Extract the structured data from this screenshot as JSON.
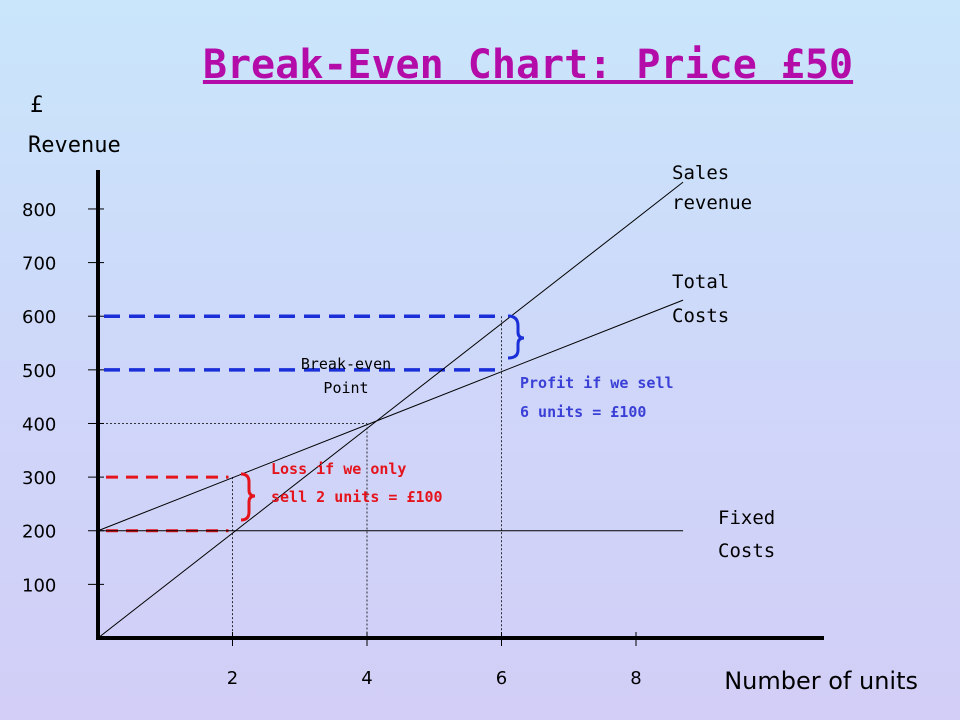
{
  "title": "Break-Even Chart: Price £50",
  "y_axis_label": [
    "£",
    "Revenue"
  ],
  "x_axis_label": "Number of units",
  "series_labels": {
    "sales_revenue": [
      "Sales",
      "revenue"
    ],
    "total_costs": [
      "Total",
      "Costs"
    ],
    "fixed_costs": [
      "Fixed",
      "Costs"
    ]
  },
  "annotations": {
    "break_even": [
      "Break-even",
      "Point"
    ],
    "profit": [
      "Profit if we sell",
      "6 units = £100"
    ],
    "loss": [
      "Loss if we only",
      "sell 2 units = £100"
    ]
  },
  "colors": {
    "title": "#b40ca8",
    "profit": "#3a3fd6",
    "profit_dash": "#1a2fd8",
    "loss": "#e5141c"
  },
  "chart_data": {
    "type": "line",
    "title": "Break-Even Chart: Price £50",
    "xlabel": "Number of units",
    "ylabel": "£ Revenue",
    "x_ticks": [
      2,
      4,
      6,
      8
    ],
    "y_ticks": [
      100,
      200,
      300,
      400,
      500,
      600,
      700,
      800
    ],
    "xlim": [
      0,
      10
    ],
    "ylim": [
      0,
      850
    ],
    "series": [
      {
        "name": "Sales revenue",
        "x": [
          0,
          8.7
        ],
        "y": [
          0,
          850
        ]
      },
      {
        "name": "Total Costs",
        "x": [
          0,
          8.7
        ],
        "y": [
          200,
          630
        ]
      },
      {
        "name": "Fixed Costs",
        "x": [
          0,
          8.7
        ],
        "y": [
          200,
          200
        ]
      }
    ],
    "break_even": {
      "x": 4,
      "y": 400
    },
    "loss_example": {
      "units": 2,
      "revenue": 200,
      "costs": 300
    },
    "profit_example": {
      "units": 6,
      "revenue": 600,
      "costs": 500
    }
  }
}
